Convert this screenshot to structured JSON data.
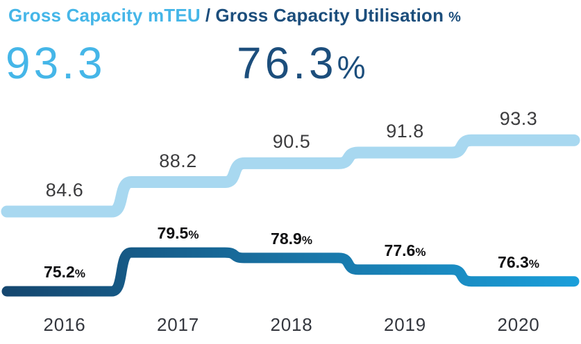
{
  "header": {
    "capacity_label": "Gross Capacity mTEU",
    "separator": "/",
    "utilisation_label": "Gross Capacity Utilisation",
    "utilisation_unit": "%"
  },
  "kpi": {
    "capacity_value": "93.3",
    "utilisation_value": "76.3",
    "utilisation_unit": "%"
  },
  "chart_data": {
    "type": "line",
    "style": "stepped",
    "title": "Gross Capacity mTEU / Gross Capacity Utilisation %",
    "categories": [
      "2016",
      "2017",
      "2018",
      "2019",
      "2020"
    ],
    "series": [
      {
        "name": "Gross Capacity mTEU",
        "values": [
          84.6,
          88.2,
          90.5,
          91.8,
          93.3
        ],
        "labels": [
          "84.6",
          "88.2",
          "90.5",
          "91.8",
          "93.3"
        ],
        "color": "#a8d8f0"
      },
      {
        "name": "Gross Capacity Utilisation %",
        "values": [
          75.2,
          79.5,
          78.9,
          77.6,
          76.3
        ],
        "labels": [
          "75.2",
          "79.5",
          "78.9",
          "77.6",
          "76.3"
        ],
        "unit": "%",
        "gradient": [
          "#15476f",
          "#1b9ed9"
        ]
      }
    ],
    "legend": "none",
    "grid": false,
    "y_axis_visible": false,
    "x_axis_labels_visible": true
  },
  "colors": {
    "accent_light_blue": "#45b6e8",
    "accent_navy": "#1c4e7c",
    "label_dark": "#0f0f11",
    "label_gray": "#3c3c3e",
    "year_color": "#33363d",
    "background": "#ffffff"
  }
}
